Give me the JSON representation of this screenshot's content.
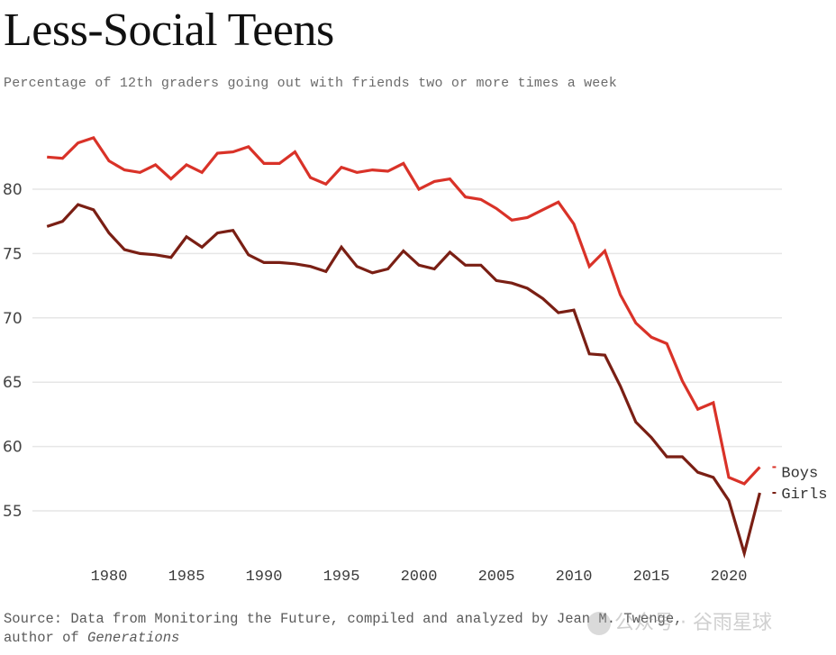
{
  "header": {
    "title": "Less-Social Teens",
    "subtitle": "Percentage of 12th graders going out with friends two or more times a week"
  },
  "footer": {
    "source_prefix": "Source: Data from Monitoring the Future, compiled and analyzed by Jean M. Twenge,",
    "source_line2_prefix": "author of ",
    "source_book": "Generations",
    "watermark": "公众号 · 谷雨星球"
  },
  "colors": {
    "boys": "#d93228",
    "girls": "#7a1f14",
    "grid": "#e6e6e6"
  },
  "chart_data": {
    "type": "line",
    "title": "Less-Social Teens",
    "subtitle": "Percentage of 12th graders going out with friends two or more times a week",
    "xlabel": "",
    "ylabel": "",
    "xlim": [
      1976,
      2022
    ],
    "ylim": [
      51,
      85
    ],
    "grid": true,
    "y_ticks": [
      55,
      60,
      65,
      70,
      75,
      80
    ],
    "x_ticks": [
      1980,
      1985,
      1990,
      1995,
      2000,
      2005,
      2010,
      2015,
      2020
    ],
    "legend": "inline-right",
    "x": [
      1976,
      1977,
      1978,
      1979,
      1980,
      1981,
      1982,
      1983,
      1984,
      1985,
      1986,
      1987,
      1988,
      1989,
      1990,
      1991,
      1992,
      1993,
      1994,
      1995,
      1996,
      1997,
      1998,
      1999,
      2000,
      2001,
      2002,
      2003,
      2004,
      2005,
      2006,
      2007,
      2008,
      2009,
      2010,
      2011,
      2012,
      2013,
      2014,
      2015,
      2016,
      2017,
      2018,
      2019,
      2020,
      2021,
      2022
    ],
    "series": [
      {
        "name": "Boys",
        "values": [
          82.5,
          82.4,
          83.6,
          84.0,
          82.2,
          81.5,
          81.3,
          81.9,
          80.8,
          81.9,
          81.3,
          82.8,
          82.9,
          83.3,
          82.0,
          82.0,
          82.9,
          80.9,
          80.4,
          81.7,
          81.3,
          81.5,
          81.4,
          82.0,
          80.0,
          80.6,
          80.8,
          79.4,
          79.2,
          78.5,
          77.6,
          77.8,
          78.4,
          79.0,
          77.3,
          74.0,
          75.2,
          71.8,
          69.6,
          68.5,
          68.0,
          65.1,
          62.9,
          63.4,
          57.6,
          57.1,
          58.4
        ]
      },
      {
        "name": "Girls",
        "values": [
          77.1,
          77.5,
          78.8,
          78.4,
          76.6,
          75.3,
          75.0,
          74.9,
          74.7,
          76.3,
          75.5,
          76.6,
          76.8,
          74.9,
          74.3,
          74.3,
          74.2,
          74.0,
          73.6,
          75.5,
          74.0,
          73.5,
          73.8,
          75.2,
          74.1,
          73.8,
          75.1,
          74.1,
          74.1,
          72.9,
          72.7,
          72.3,
          71.5,
          70.4,
          70.6,
          67.2,
          67.1,
          64.7,
          61.9,
          60.7,
          59.2,
          59.2,
          58.0,
          57.6,
          55.8,
          51.7,
          56.4
        ]
      }
    ]
  }
}
